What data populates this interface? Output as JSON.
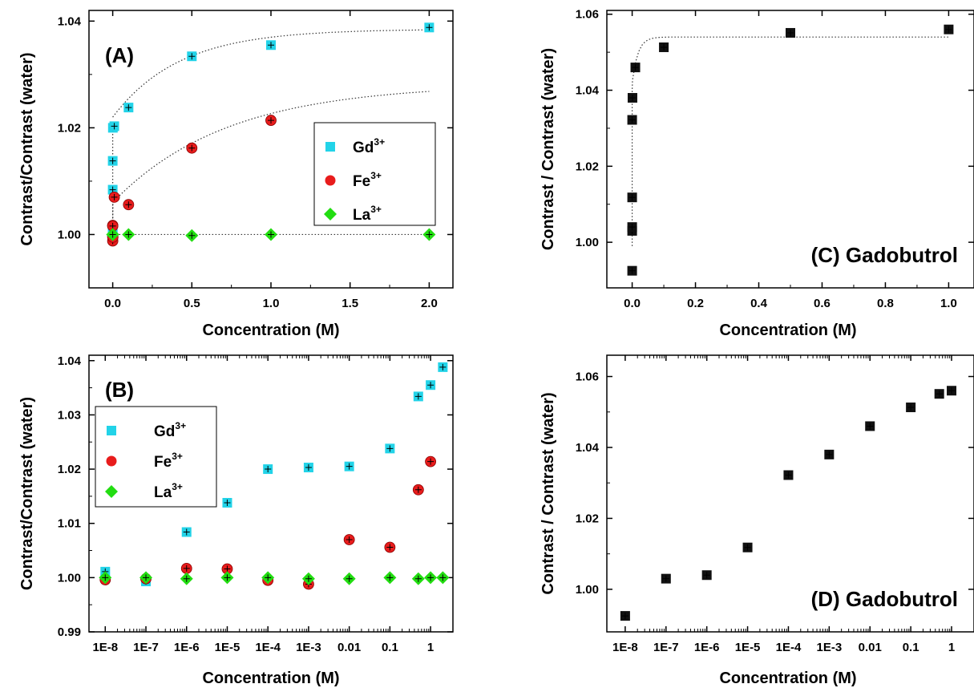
{
  "chart_data": [
    {
      "panel_label": "(A)",
      "type": "scatter",
      "xlabel": "Concentration  (M)",
      "ylabel": "Contrast/Contrast (water)",
      "xscale": "linear",
      "xlim": [
        -0.15,
        2.15
      ],
      "ylim": [
        0.99,
        1.042
      ],
      "xticks": [
        0.0,
        0.5,
        1.0,
        1.5,
        2.0
      ],
      "xtick_labels": [
        "0.0",
        "0.5",
        "1.0",
        "1.5",
        "2.0"
      ],
      "yticks": [
        1.0,
        1.02,
        1.04
      ],
      "ytick_labels": [
        "1.00",
        "1.02",
        "1.04"
      ],
      "legend_position": "center-right",
      "series": [
        {
          "name": "Gd",
          "sup": "3+",
          "marker": "square",
          "color": "#22d3e8",
          "x": [
            0,
            0,
            0,
            0,
            0.001,
            0.01,
            0.1,
            0.5,
            1.0,
            2.0
          ],
          "y": [
            1.0008,
            1.0001,
            1.0084,
            1.0138,
            1.02,
            1.0203,
            1.0238,
            1.0334,
            1.0355,
            1.0388
          ]
        },
        {
          "name": "Fe",
          "sup": "3+",
          "marker": "circle",
          "color": "#e81c1c",
          "x": [
            0,
            0,
            0,
            0,
            0.001,
            0.01,
            0.1,
            0.5,
            1.0
          ],
          "y": [
            0.9996,
            1.0017,
            1.0016,
            0.9988,
            0.9995,
            1.007,
            1.0056,
            1.0162,
            1.0214
          ]
        },
        {
          "name": "La",
          "sup": "3+",
          "marker": "diamond",
          "color": "#22dd11",
          "x": [
            0,
            0,
            0,
            0,
            0.1,
            0.5,
            1.0,
            2.0
          ],
          "y": [
            1.0,
            1.0,
            1.0,
            1.0,
            1.0,
            0.9998,
            1.0,
            1.0
          ]
        }
      ],
      "fit_lines": "dotted"
    },
    {
      "panel_label": "(B)",
      "type": "scatter",
      "xlabel": "Concentration  (M)",
      "ylabel": "Contrast/Contrast (water)",
      "xscale": "log",
      "xlim": [
        -8.4,
        0.55
      ],
      "ylim": [
        0.99,
        1.041
      ],
      "xticks": [
        -8,
        -7,
        -6,
        -5,
        -4,
        -3,
        -2,
        -1,
        0
      ],
      "xtick_labels": [
        "1E-8",
        "1E-7",
        "1E-6",
        "1E-5",
        "1E-4",
        "1E-3",
        "0.01",
        "0.1",
        "1"
      ],
      "yticks": [
        0.99,
        1.0,
        1.01,
        1.02,
        1.03,
        1.04
      ],
      "ytick_labels": [
        "0.99",
        "1.00",
        "1.01",
        "1.02",
        "1.03",
        "1.04"
      ],
      "legend_position": "top-left",
      "series": [
        {
          "name": "Gd",
          "sup": "3+",
          "marker": "square",
          "color": "#22d3e8",
          "x": [
            "1E-8",
            "1E-7",
            "1E-6",
            "1E-5",
            "1E-4",
            "1E-3",
            "0.01",
            "0.1",
            "0.5",
            "1",
            "2"
          ],
          "y": [
            1.0011,
            0.9993,
            1.0084,
            1.0138,
            1.02,
            1.0203,
            1.0205,
            1.0238,
            1.0334,
            1.0355,
            1.0388
          ]
        },
        {
          "name": "Fe",
          "sup": "3+",
          "marker": "circle",
          "color": "#e81c1c",
          "x": [
            "1E-8",
            "1E-7",
            "1E-6",
            "1E-5",
            "1E-4",
            "1E-3",
            "0.01",
            "0.1",
            "0.5",
            "1"
          ],
          "y": [
            0.9996,
            0.9998,
            1.0017,
            1.0016,
            0.9995,
            0.9988,
            1.007,
            1.0056,
            1.0162,
            1.0214
          ]
        },
        {
          "name": "La",
          "sup": "3+",
          "marker": "diamond",
          "color": "#22dd11",
          "x": [
            "1E-8",
            "1E-7",
            "1E-6",
            "1E-5",
            "1E-4",
            "1E-3",
            "0.01",
            "0.1",
            "0.5",
            "1",
            "2"
          ],
          "y": [
            1.0,
            1.0,
            0.9998,
            1.0,
            1.0,
            0.9998,
            0.9998,
            1.0,
            0.9998,
            1.0,
            1.0
          ]
        }
      ]
    },
    {
      "panel_label": "(C) Gadobutrol",
      "type": "scatter",
      "xlabel": "Concentration  (M)",
      "ylabel": "Contrast / Contrast (water)",
      "xscale": "linear",
      "xlim": [
        -0.08,
        1.08
      ],
      "ylim": [
        0.988,
        1.061
      ],
      "xticks": [
        0.0,
        0.2,
        0.4,
        0.6,
        0.8,
        1.0
      ],
      "xtick_labels": [
        "0.0",
        "0.2",
        "0.4",
        "0.6",
        "0.8",
        "1.0"
      ],
      "yticks": [
        1.0,
        1.02,
        1.04,
        1.06
      ],
      "ytick_labels": [
        "1.00",
        "1.02",
        "1.04",
        "1.06"
      ],
      "series": [
        {
          "marker": "square",
          "color": "#111111",
          "x": [
            0,
            0,
            0,
            0,
            0,
            0.001,
            0.01,
            0.1,
            0.5,
            1.0
          ],
          "y": [
            0.9925,
            1.003,
            1.004,
            1.0118,
            1.0322,
            1.038,
            1.046,
            1.0513,
            1.0551,
            1.056
          ]
        }
      ],
      "fit_lines": "dotted"
    },
    {
      "panel_label": "(D) Gadobutrol",
      "type": "scatter",
      "xlabel": "Concentration  (M)",
      "ylabel": "Contrast / Contrast (water)",
      "xscale": "log",
      "xlim": [
        -8.45,
        0.55
      ],
      "ylim": [
        0.988,
        1.066
      ],
      "xticks": [
        -8,
        -7,
        -6,
        -5,
        -4,
        -3,
        -2,
        -1,
        0
      ],
      "xtick_labels": [
        "1E-8",
        "1E-7",
        "1E-6",
        "1E-5",
        "1E-4",
        "1E-3",
        "0.01",
        "0.1",
        "1"
      ],
      "yticks": [
        1.0,
        1.02,
        1.04,
        1.06
      ],
      "ytick_labels": [
        "1.00",
        "1.02",
        "1.04",
        "1.06"
      ],
      "series": [
        {
          "marker": "square",
          "color": "#111111",
          "x": [
            "1E-8",
            "1E-7",
            "1E-6",
            "1E-5",
            "1E-4",
            "1E-3",
            "0.01",
            "0.1",
            "0.5",
            "1"
          ],
          "y": [
            0.9925,
            1.003,
            1.004,
            1.0118,
            1.0322,
            1.038,
            1.046,
            1.0513,
            1.0551,
            1.056
          ]
        }
      ]
    }
  ]
}
